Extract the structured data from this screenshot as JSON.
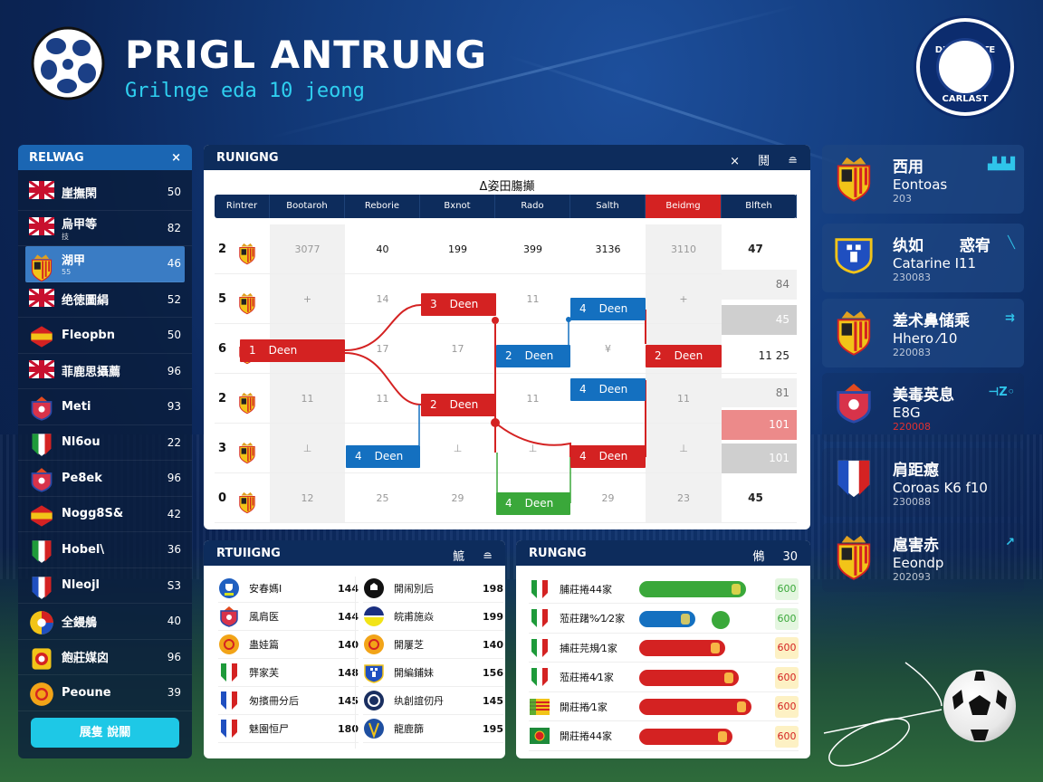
{
  "header": {
    "title": "PRIGL ANTRUNG",
    "subtitle": "Grilnge eda 10 jeong",
    "badge_top": "DESCORATE",
    "badge_bottom": "CARLAST"
  },
  "colors": {
    "accent": "#1ec8e6",
    "navy": "#0d2c5c",
    "red": "#d42222",
    "blue": "#1470c0",
    "green": "#3aa83a"
  },
  "left_panel": {
    "title": "RELWAG",
    "close": "×",
    "button_label": "展隻 說關",
    "items": [
      {
        "icon": "uk-flag",
        "name": "崖撫閑",
        "sub": "",
        "value": "50"
      },
      {
        "icon": "uk-flag",
        "name": "烏甲等",
        "sub": "技",
        "value": "82"
      },
      {
        "icon": "crest-shield",
        "name": "湖甲",
        "sub": "55",
        "value": "46",
        "selected": true
      },
      {
        "icon": "uk-flag",
        "name": "绝徳圖絹",
        "sub": "",
        "value": "52"
      },
      {
        "icon": "spain-shield",
        "name": "Fleopbn",
        "sub": "",
        "value": "50"
      },
      {
        "icon": "uk-flag",
        "name": "菲鹿思攝薦",
        "sub": "",
        "value": "96"
      },
      {
        "icon": "club-badge",
        "name": "Meti",
        "sub": "",
        "value": "93"
      },
      {
        "icon": "italy-flag",
        "name": "Nl6ou",
        "sub": "",
        "value": "22"
      },
      {
        "icon": "club-badge",
        "name": "Pe8ek",
        "sub": "",
        "value": "96"
      },
      {
        "icon": "spain-shield",
        "name": "Nogg8S&",
        "sub": "",
        "value": "42"
      },
      {
        "icon": "italy-flag",
        "name": "Hobel\\",
        "sub": "",
        "value": "36"
      },
      {
        "icon": "france-flag",
        "name": "Nleojl",
        "sub": "",
        "value": "S3"
      },
      {
        "icon": "multi-badge",
        "name": "全鏝鵃",
        "sub": "",
        "value": "40"
      },
      {
        "icon": "crest-square",
        "name": "飽莊媒囟",
        "sub": "",
        "value": "96"
      },
      {
        "icon": "orange-badge",
        "name": "Peoune",
        "sub": "",
        "value": "39"
      }
    ]
  },
  "bracket": {
    "title": "RUNIGNG",
    "actions": [
      "×",
      "鬩",
      "≘"
    ],
    "subtitle": "Δ姿田膓攧",
    "columns": [
      "Rintrer",
      "Bootaroh",
      "Reborie",
      "Bxnot",
      "Rado",
      "Salth",
      "Beidmg",
      "Blfteh"
    ],
    "highlight_column": 6,
    "rows": [
      {
        "rank": "2",
        "cells": [
          "3077",
          "40",
          "199",
          "399",
          "3136",
          "3110"
        ]
      },
      {
        "rank": "5",
        "cells": [
          "+",
          "14",
          "",
          "11",
          "",
          "+"
        ]
      },
      {
        "rank": "6",
        "cells": [
          "",
          "17",
          "17",
          "",
          "¥",
          ""
        ]
      },
      {
        "rank": "2",
        "cells": [
          "11",
          "11",
          "",
          "11",
          "",
          "11"
        ]
      },
      {
        "rank": "3",
        "cells": [
          "⊥",
          "",
          "⊥",
          "⊥",
          "",
          "⊥"
        ]
      },
      {
        "rank": "0",
        "cells": [
          "12",
          "25",
          "29",
          "",
          "29",
          "23"
        ]
      }
    ],
    "last_column": [
      {
        "value": "47",
        "tone": "plain"
      },
      {
        "value": "84",
        "tone": "light"
      },
      {
        "value": "45",
        "tone": "gray"
      },
      {
        "value": "11  25",
        "tone": "plain"
      },
      {
        "value": "81",
        "tone": "light"
      },
      {
        "value": "101",
        "tone": "pink"
      },
      {
        "value": "101",
        "tone": "gray"
      },
      {
        "value": "45",
        "tone": "plain"
      }
    ],
    "matches": [
      {
        "seed": "1",
        "label": "Deen",
        "color": "red"
      },
      {
        "seed": "3",
        "label": "Deen",
        "color": "red"
      },
      {
        "seed": "2",
        "label": "Deen",
        "color": "red"
      },
      {
        "seed": "4",
        "label": "Deen",
        "color": "blue"
      },
      {
        "seed": "2",
        "label": "Deen",
        "color": "blue"
      },
      {
        "seed": "4",
        "label": "Deen",
        "color": "green"
      },
      {
        "seed": "4",
        "label": "Deen",
        "color": "blue"
      },
      {
        "seed": "4",
        "label": "Deen",
        "color": "blue"
      },
      {
        "seed": "4",
        "label": "Deen",
        "color": "red"
      },
      {
        "seed": "2",
        "label": "Deen",
        "color": "red"
      }
    ]
  },
  "right_cards": [
    {
      "icon": "crest-shield",
      "l1": "西用",
      "l2": "Eontoas",
      "l3": "203",
      "mark": "▟▟▟"
    },
    {
      "icon": "blue-crest",
      "l1": "纨如　　 惑宥",
      "l2": "Catarine I11",
      "l3": "230083",
      "mark": "╲"
    },
    {
      "icon": "crest-shield",
      "l1": "差术鼻储乘",
      "l2": "Hhero ⁄10",
      "l3": "220083",
      "mark": "⇉"
    },
    {
      "icon": "club-badge",
      "l1": "美毒英息",
      "l2": "E8G",
      "l3": "220008",
      "mark": "⊣Z◦"
    },
    {
      "icon": "france-shield",
      "l1": "肩距癋",
      "l2": "Coroas K6 f10",
      "l3": "230088",
      "mark": ""
    },
    {
      "icon": "crest-shield",
      "l1": "扈害赤",
      "l2": "Eeondp",
      "l3": "202093",
      "mark": "↗"
    }
  ],
  "bottom_left": {
    "title": "RTUIIGNG",
    "actions": [
      "鯳",
      "≘"
    ],
    "left": [
      {
        "icon": "blue-trophy",
        "name": "安春媽I",
        "value": "144"
      },
      {
        "icon": "club-badge",
        "name": "風肩医",
        "value": "144"
      },
      {
        "icon": "orange-badge",
        "name": "蛊娃篇",
        "value": "140"
      },
      {
        "icon": "italy-flag",
        "name": "龏家芙",
        "value": "148"
      },
      {
        "icon": "france-flag",
        "name": "匆擯冊分后",
        "value": "145"
      },
      {
        "icon": "france-flag",
        "name": "魅園恒尸",
        "value": "180"
      }
    ],
    "right": [
      {
        "icon": "black-badge",
        "name": "開闹別后",
        "value": "198"
      },
      {
        "icon": "navy-yellow-badge",
        "name": "皖甫施焱",
        "value": "199"
      },
      {
        "icon": "orange-badge",
        "name": "開屢芝",
        "value": "140"
      },
      {
        "icon": "blue-crest",
        "name": "開編鋪妹",
        "value": "156"
      },
      {
        "icon": "navy-badge",
        "name": "纨創誼仞丹",
        "value": "145"
      },
      {
        "icon": "gold-badge",
        "name": "龍鹿篩",
        "value": "195"
      }
    ]
  },
  "bottom_right": {
    "title": "RUNGNG",
    "actions": [
      "鵂",
      "30"
    ],
    "rows": [
      {
        "icon": "italy-flag",
        "name": "脯莊捲44家",
        "bar_color": "green",
        "bar_percent": 95,
        "value": "600",
        "value_tone": "green"
      },
      {
        "icon": "italy-flag",
        "name": "蒞莊躇%⁄1⁄2家",
        "bar_color": "blue",
        "bar_percent": 50,
        "value": "600",
        "value_tone": "green"
      },
      {
        "icon": "italy-flag",
        "name": "捕莊芫規⁄1家",
        "bar_color": "red",
        "bar_percent": 77,
        "value": "600",
        "value_tone": "yellow"
      },
      {
        "icon": "italy-flag",
        "name": "蒞莊捲4⁄1家",
        "bar_color": "red",
        "bar_percent": 89,
        "value": "600",
        "value_tone": "yellow"
      },
      {
        "icon": "catalan-flag",
        "name": "開莊捲⁄1家",
        "bar_color": "red",
        "bar_percent": 100,
        "value": "600",
        "value_tone": "yellow"
      },
      {
        "icon": "portugal-flag",
        "name": "開莊捲44家",
        "bar_color": "red",
        "bar_percent": 83,
        "value": "600",
        "value_tone": "yellow"
      }
    ]
  }
}
